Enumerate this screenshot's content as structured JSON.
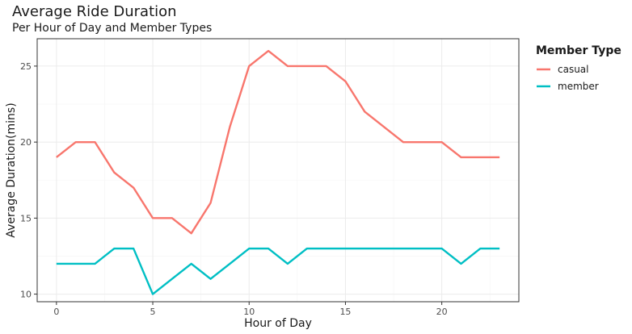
{
  "chart_data": {
    "type": "line",
    "title": "Average Ride Duration",
    "subtitle": "Per Hour of Day and Member Types",
    "xlabel": "Hour of Day",
    "ylabel": "Average Duration(mins)",
    "x": [
      0,
      1,
      2,
      3,
      4,
      5,
      6,
      7,
      8,
      9,
      10,
      11,
      12,
      13,
      14,
      15,
      16,
      17,
      18,
      19,
      20,
      21,
      22,
      23
    ],
    "xlim": [
      -1,
      24
    ],
    "ylim": [
      9.5,
      26.8
    ],
    "x_ticks": [
      0,
      5,
      10,
      15,
      20
    ],
    "y_ticks": [
      10,
      15,
      20,
      25
    ],
    "grid": true,
    "legend": {
      "title": "Member Type",
      "position": "right"
    },
    "series": [
      {
        "name": "casual",
        "color": "#F8766D",
        "values": [
          19,
          20,
          20,
          18,
          17,
          15,
          15,
          14,
          16,
          21,
          25,
          26,
          25,
          25,
          25,
          24,
          22,
          21,
          20,
          20,
          20,
          19,
          19,
          19
        ]
      },
      {
        "name": "member",
        "color": "#00BFC4",
        "values": [
          12,
          12,
          12,
          13,
          13,
          10,
          11,
          12,
          11,
          12,
          13,
          13,
          12,
          13,
          13,
          13,
          13,
          13,
          13,
          13,
          13,
          12,
          13,
          13
        ]
      }
    ]
  }
}
